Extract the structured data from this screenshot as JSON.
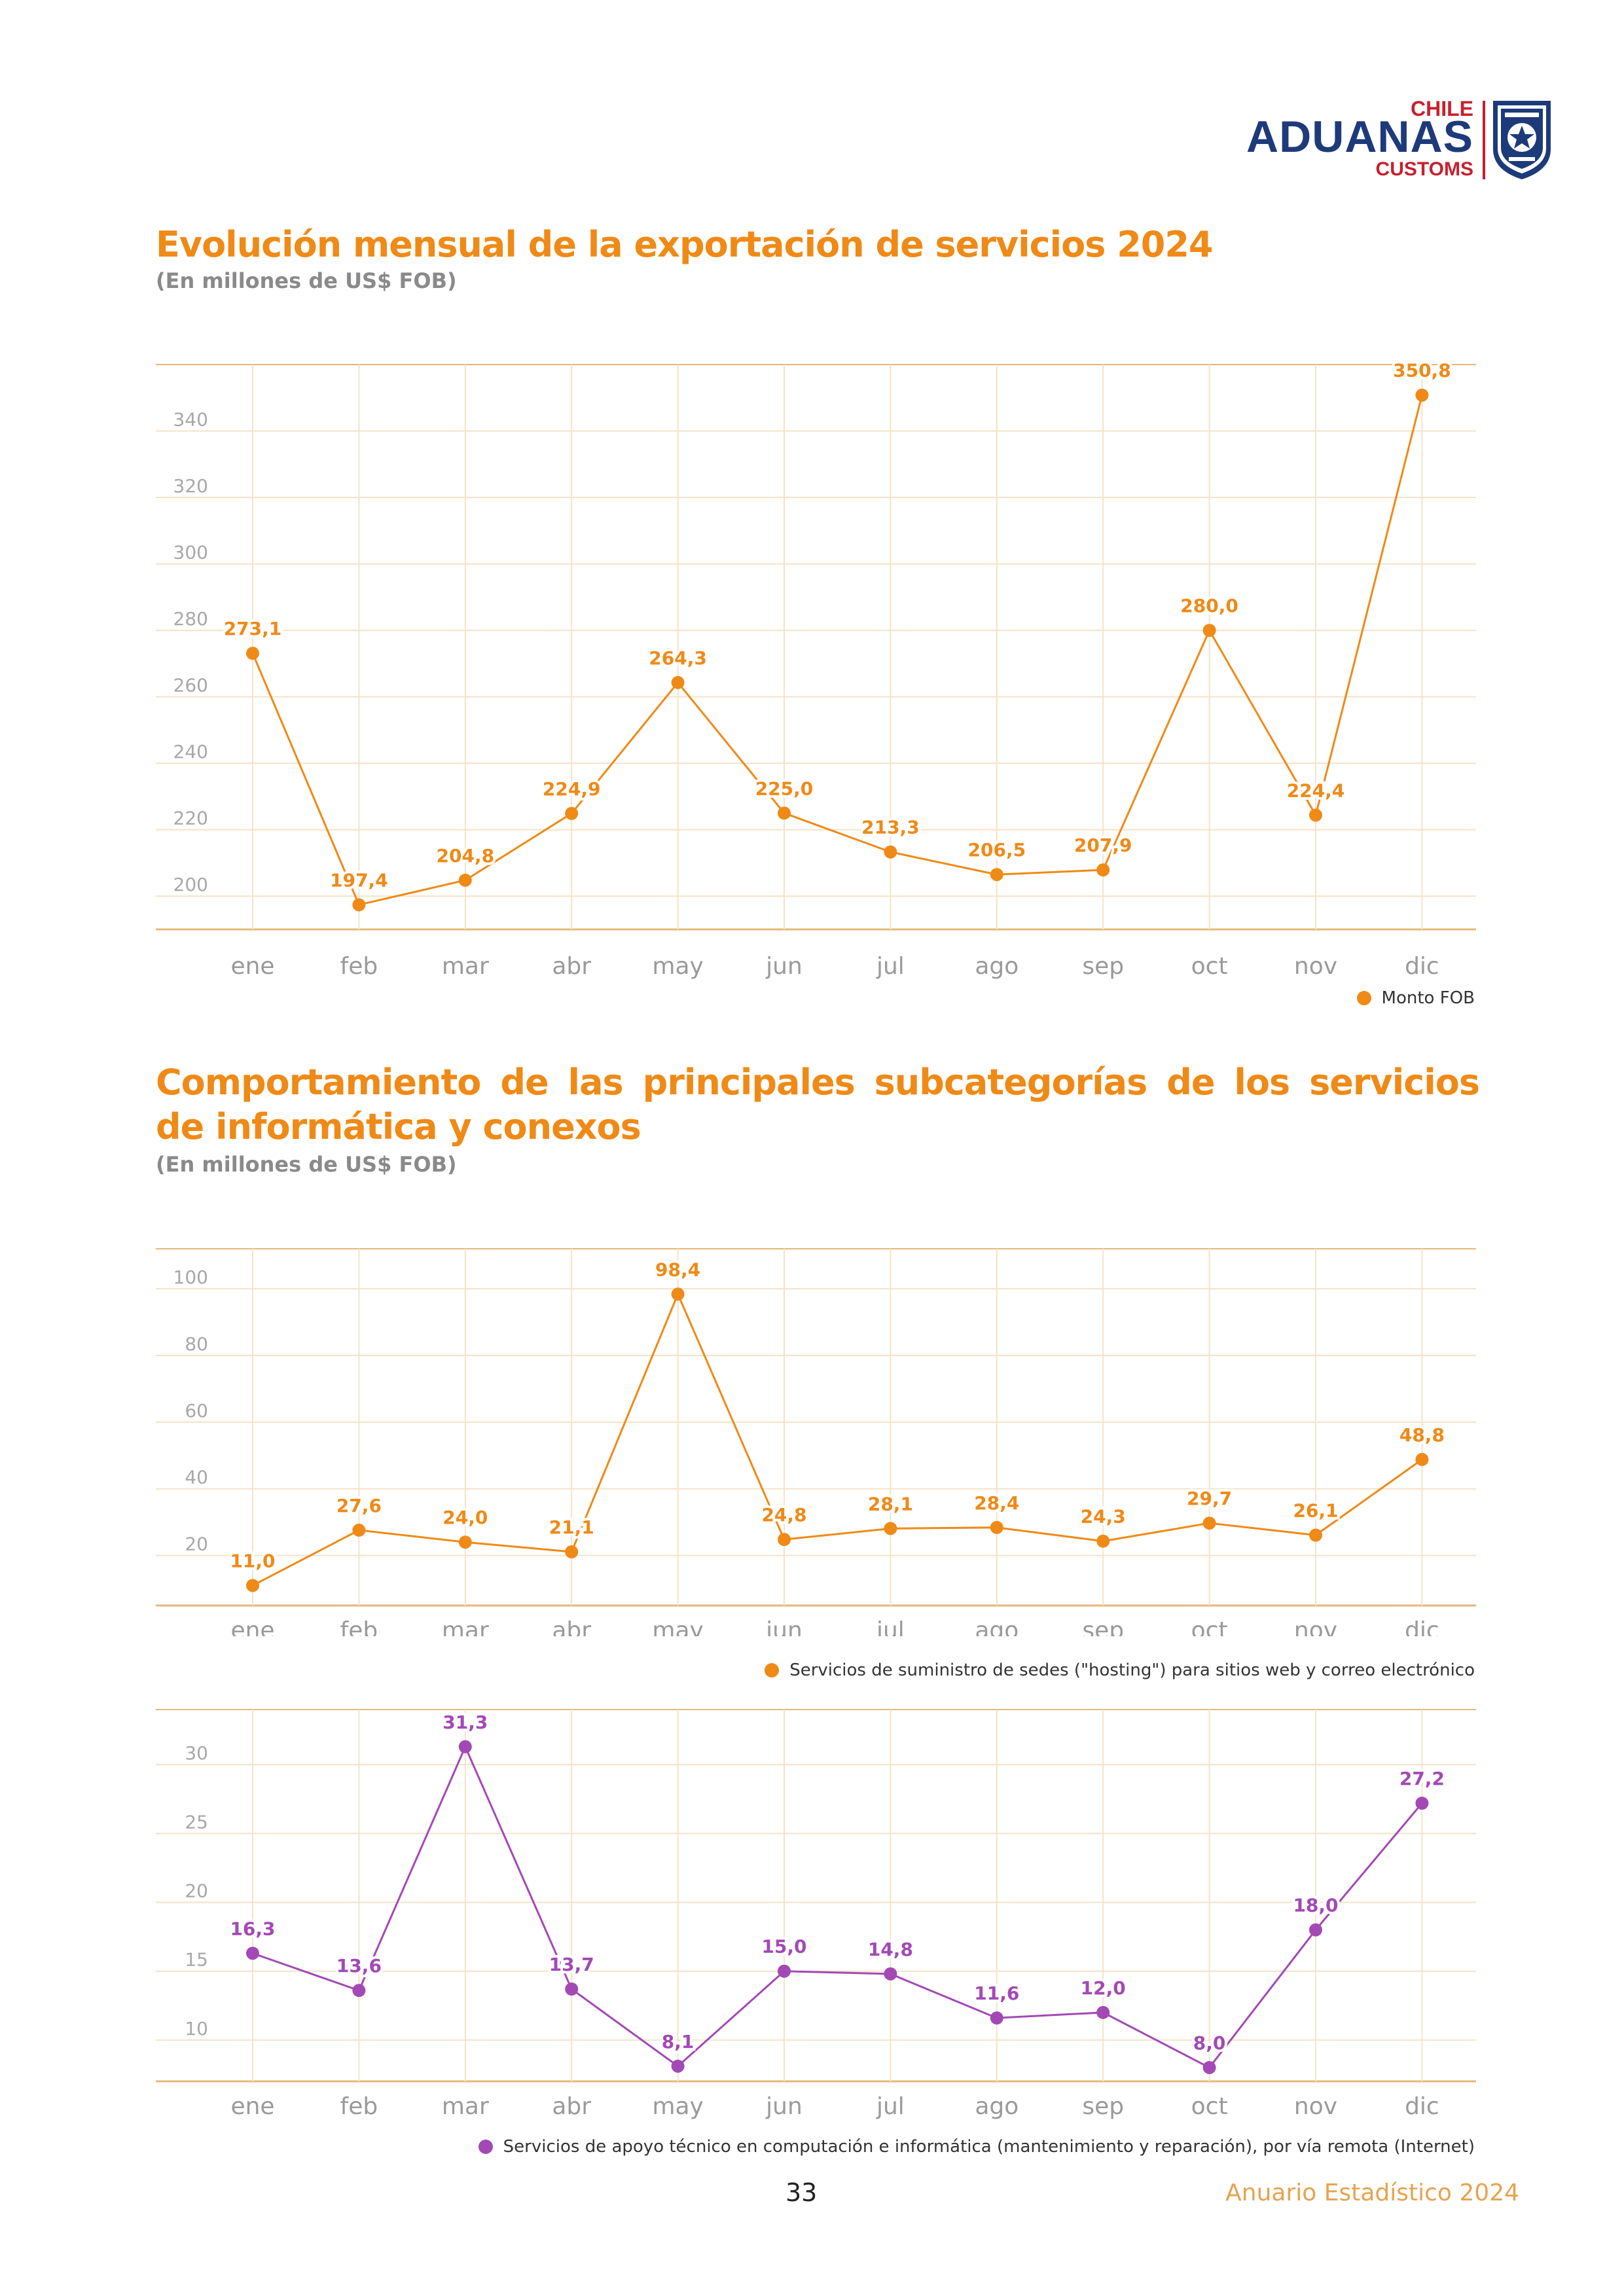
{
  "logo": {
    "country": "CHILE",
    "name": "ADUANAS",
    "sub": "CUSTOMS",
    "seal_text": "ADUANAS CHILE"
  },
  "section1": {
    "title": "Evolución mensual de la exportación de servicios 2024",
    "subtitle": "(En millones de US$ FOB)"
  },
  "section2": {
    "title": "Comportamiento de las principales subcategorías de los servicios de informática y conexos",
    "subtitle": "(En millones de US$ FOB)"
  },
  "chart_data": [
    {
      "type": "line",
      "categories": [
        "ene",
        "feb",
        "mar",
        "abr",
        "may",
        "jun",
        "jul",
        "ago",
        "sep",
        "oct",
        "nov",
        "dic"
      ],
      "series": [
        {
          "name": "Monto FOB",
          "values": [
            273.1,
            197.4,
            204.8,
            224.9,
            264.3,
            225.0,
            213.3,
            206.5,
            207.9,
            280.0,
            224.4,
            350.8
          ]
        }
      ],
      "labels": [
        "273,1",
        "197,4",
        "204,8",
        "224,9",
        "264,3",
        "225,0",
        "213,3",
        "206,5",
        "207,9",
        "280,0",
        "224,4",
        "350,8"
      ],
      "yticks": [
        200,
        220,
        240,
        260,
        280,
        300,
        320,
        340
      ],
      "ylim": [
        190,
        360
      ],
      "color": "#ef8a17",
      "legend": "Monto FOB"
    },
    {
      "type": "line",
      "categories": [
        "ene",
        "feb",
        "mar",
        "abr",
        "may",
        "jun",
        "jul",
        "ago",
        "sep",
        "oct",
        "nov",
        "dic"
      ],
      "series": [
        {
          "name": "Servicios de suministro de sedes (\"hosting\") para sitios web y correo electrónico",
          "values": [
            11.0,
            27.6,
            24.0,
            21.1,
            98.4,
            24.8,
            28.1,
            28.4,
            24.3,
            29.7,
            26.1,
            48.8
          ]
        }
      ],
      "labels": [
        "11,0",
        "27,6",
        "24,0",
        "21,1",
        "98,4",
        "24,8",
        "28,1",
        "28,4",
        "24,3",
        "29,7",
        "26,1",
        "48,8"
      ],
      "yticks": [
        20,
        40,
        60,
        80,
        100
      ],
      "ylim": [
        5,
        112
      ],
      "color": "#ef8a17",
      "legend": "Servicios de suministro de sedes (\"hosting\") para sitios web y correo electrónico"
    },
    {
      "type": "line",
      "categories": [
        "ene",
        "feb",
        "mar",
        "abr",
        "may",
        "jun",
        "jul",
        "ago",
        "sep",
        "oct",
        "nov",
        "dic"
      ],
      "series": [
        {
          "name": "Servicios de apoyo técnico en computación e informática (mantenimiento y reparación), por vía remota (Internet)",
          "values": [
            16.3,
            13.6,
            31.3,
            13.7,
            8.1,
            15.0,
            14.8,
            11.6,
            12.0,
            8.0,
            18.0,
            27.2
          ]
        }
      ],
      "labels": [
        "16,3",
        "13,6",
        "31,3",
        "13,7",
        "8,1",
        "15,0",
        "14,8",
        "11,6",
        "12,0",
        "8,0",
        "18,0",
        "27,2"
      ],
      "yticks": [
        10,
        15,
        20,
        25,
        30
      ],
      "ylim": [
        7,
        34
      ],
      "color": "#a349b5",
      "legend": "Servicios de apoyo técnico en computación e informática (mantenimiento y reparación), por vía remota (Internet)"
    }
  ],
  "footer": {
    "page_number": "33",
    "publication": "Anuario Estadístico 2024"
  }
}
